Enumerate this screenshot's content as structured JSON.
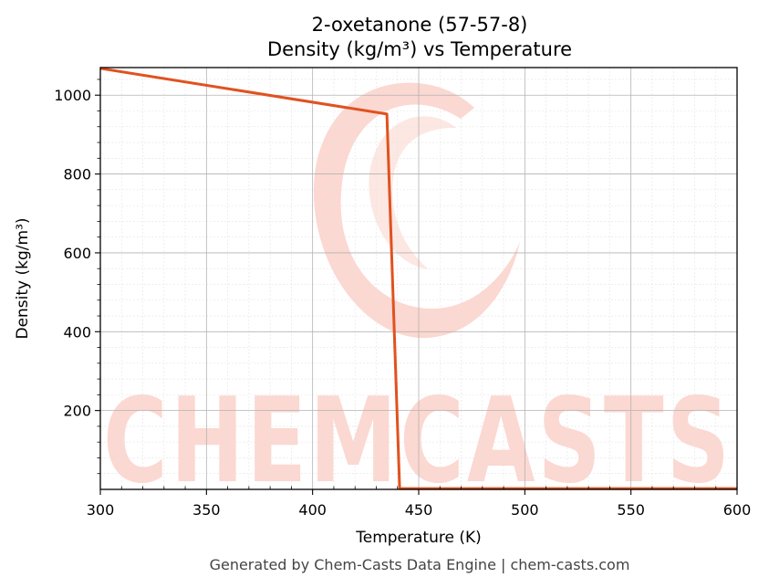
{
  "chart_data": {
    "type": "line",
    "title": "2-oxetanone (57-57-8)",
    "subtitle": "Density (kg/m³) vs Temperature",
    "xlabel": "Temperature (K)",
    "ylabel": "Density (kg/m³)",
    "xlim": [
      300,
      600
    ],
    "ylim": [
      0,
      1070
    ],
    "x_ticks": [
      300,
      350,
      400,
      450,
      500,
      550,
      600
    ],
    "y_ticks": [
      200,
      400,
      600,
      800,
      1000
    ],
    "grid": true,
    "series": [
      {
        "color": "#e0521f",
        "x": [
          300,
          435,
          441,
          600
        ],
        "y": [
          1068,
          952,
          2,
          2
        ]
      }
    ]
  },
  "watermark": {
    "text": "CHEMCASTS",
    "color": "#fbd6cf"
  },
  "footer": "Generated by Chem-Casts Data Engine | chem-casts.com"
}
